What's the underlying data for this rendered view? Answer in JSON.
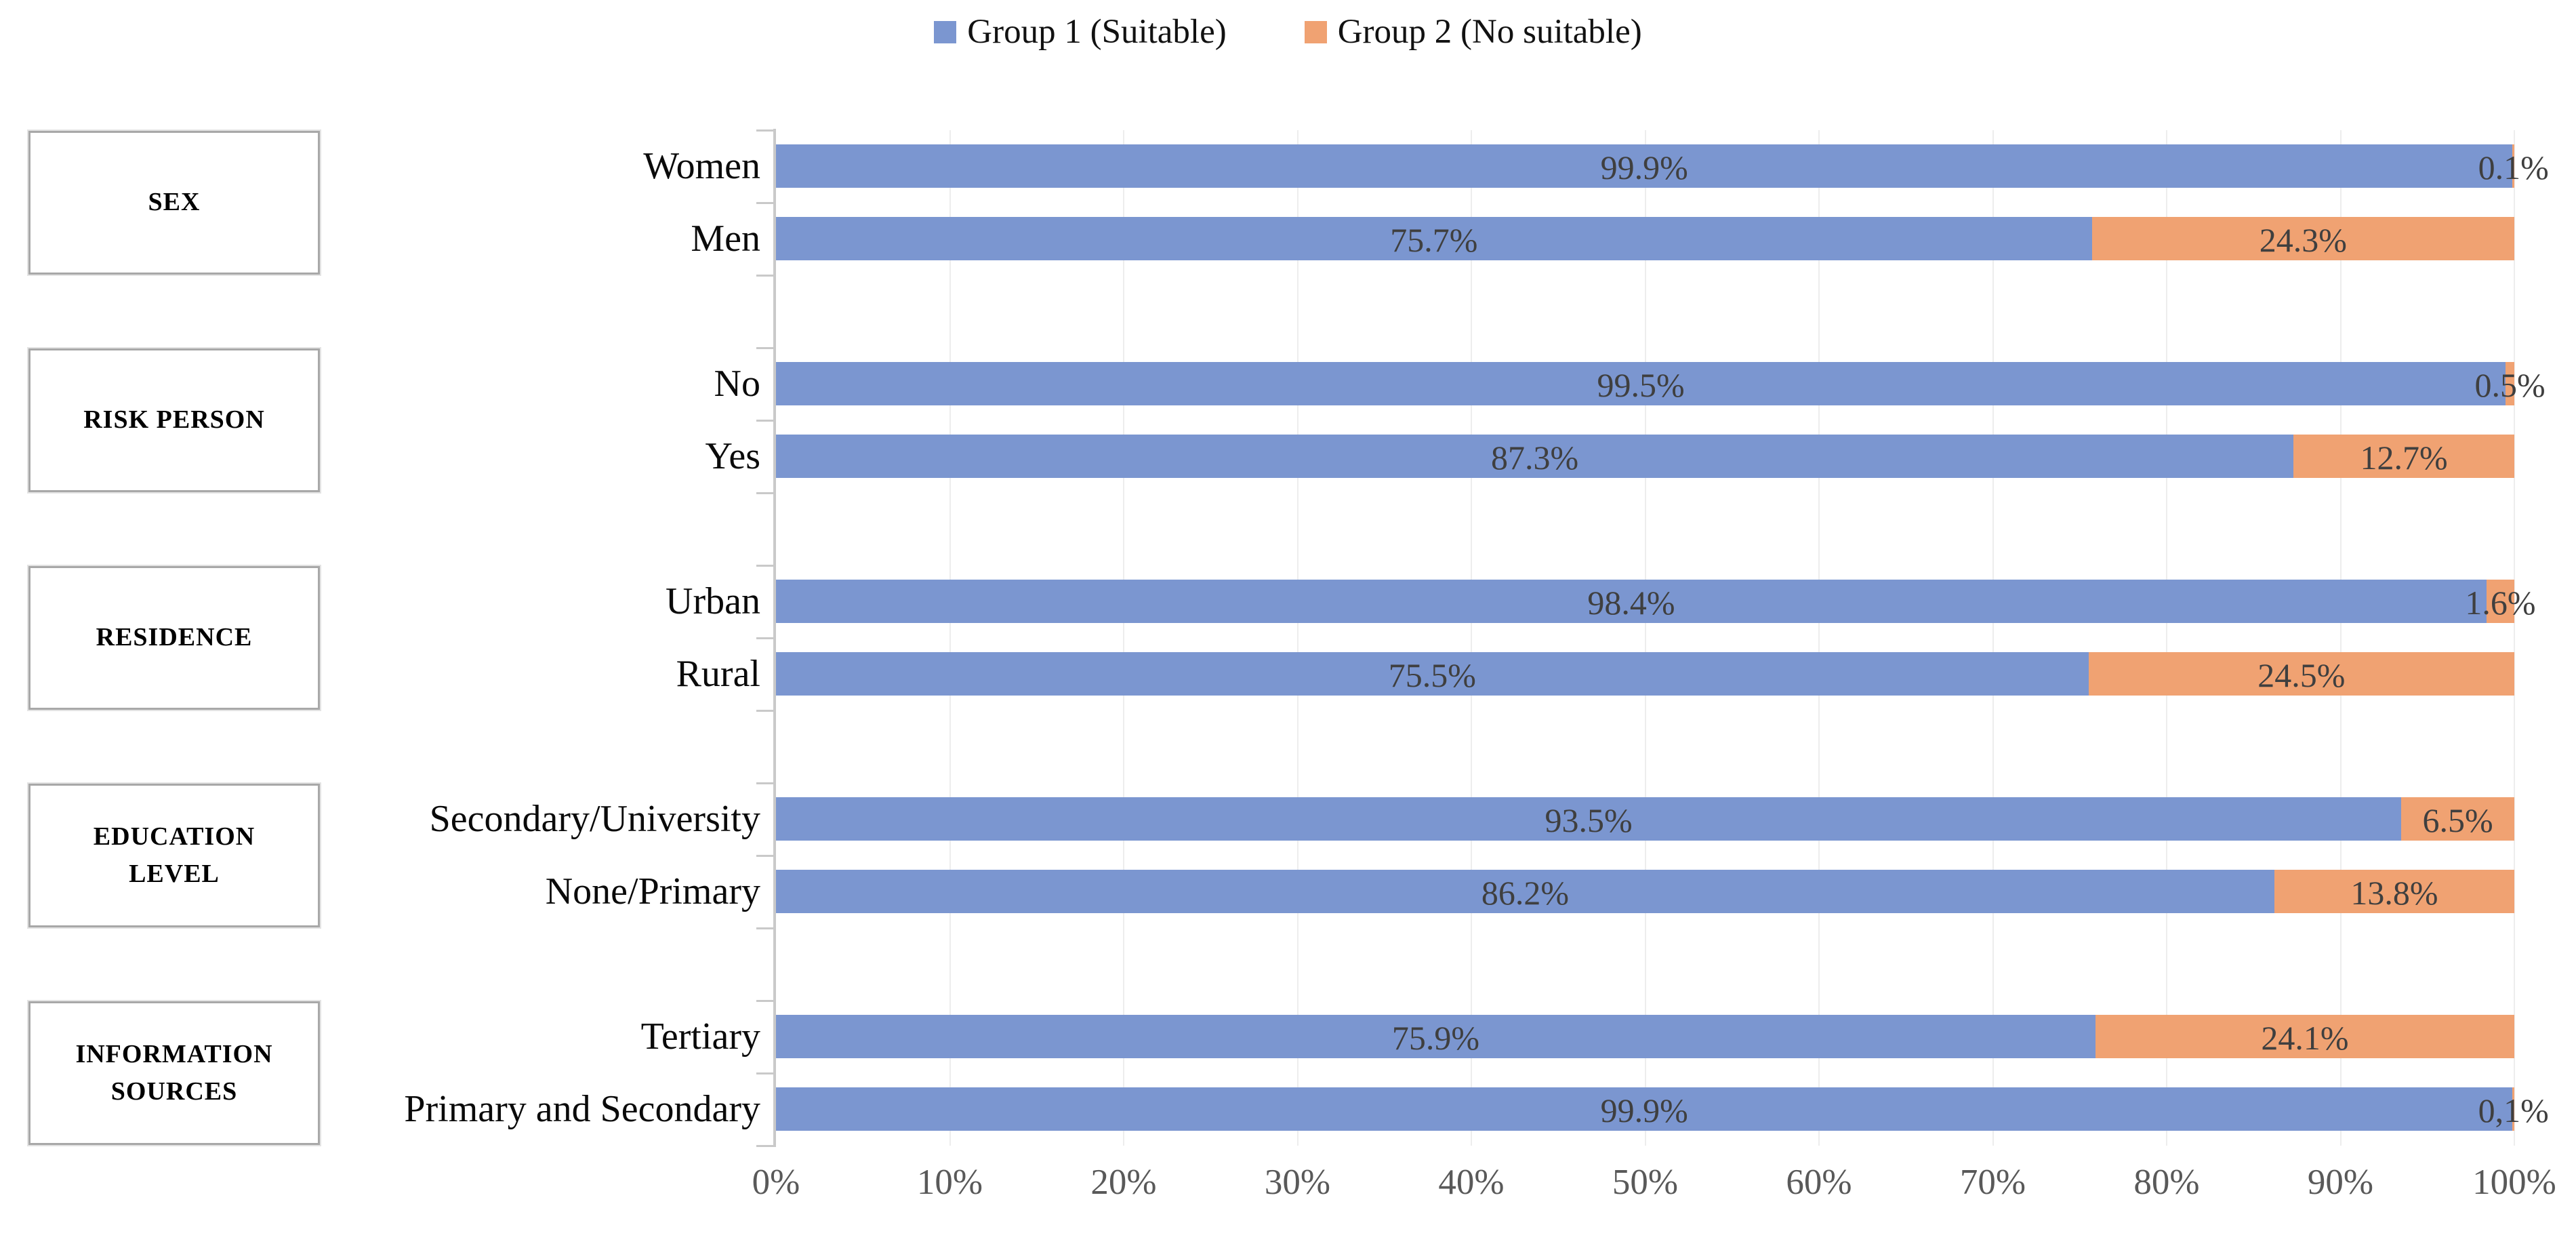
{
  "legend": [
    {
      "label": "Group 1 (Suitable)",
      "color": "#7B96D0"
    },
    {
      "label": "Group 2 (No suitable)",
      "color": "#F0A272"
    }
  ],
  "colors": {
    "group1_blue": "#7B96D0",
    "group2_orange": "#F0A272",
    "gridline": "#EDEDED",
    "axis": "#C9C9C9",
    "data_label": "#3F3F3F",
    "axis_label": "#595959"
  },
  "chart_data": {
    "type": "bar",
    "orientation": "horizontal",
    "stacked": true,
    "title": "",
    "xlabel": "",
    "ylabel": "",
    "xlim": [
      0,
      100
    ],
    "grid": true,
    "legend_position": "top-center",
    "series_names": [
      "Group 1 (Suitable)",
      "Group 2 (No suitable)"
    ],
    "x_ticks": [
      "0%",
      "10%",
      "20%",
      "30%",
      "40%",
      "50%",
      "60%",
      "70%",
      "80%",
      "90%",
      "100%"
    ],
    "groups": [
      {
        "label": "SEX",
        "rows": [
          {
            "category": "Women",
            "values": [
              99.9,
              0.1
            ],
            "labels": [
              "99.9%",
              "0.1%"
            ]
          },
          {
            "category": "Men",
            "values": [
              75.7,
              24.3
            ],
            "labels": [
              "75.7%",
              "24.3%"
            ]
          }
        ]
      },
      {
        "label": "RISK PERSON",
        "rows": [
          {
            "category": "No",
            "values": [
              99.5,
              0.5
            ],
            "labels": [
              "99.5%",
              "0.5%"
            ]
          },
          {
            "category": "Yes",
            "values": [
              87.3,
              12.7
            ],
            "labels": [
              "87.3%",
              "12.7%"
            ]
          }
        ]
      },
      {
        "label": "RESIDENCE",
        "rows": [
          {
            "category": "Urban",
            "values": [
              98.4,
              1.6
            ],
            "labels": [
              "98.4%",
              "1.6%"
            ]
          },
          {
            "category": "Rural",
            "values": [
              75.5,
              24.5
            ],
            "labels": [
              "75.5%",
              "24.5%"
            ]
          }
        ]
      },
      {
        "label": "EDUCATION LEVEL",
        "rows": [
          {
            "category": "Secondary/University",
            "values": [
              93.5,
              6.5
            ],
            "labels": [
              "93.5%",
              "6.5%"
            ]
          },
          {
            "category": "None/Primary",
            "values": [
              86.2,
              13.8
            ],
            "labels": [
              "86.2%",
              "13.8%"
            ]
          }
        ]
      },
      {
        "label": "INFORMATION SOURCES",
        "rows": [
          {
            "category": "Tertiary",
            "values": [
              75.9,
              24.1
            ],
            "labels": [
              "75.9%",
              "24.1%"
            ]
          },
          {
            "category": "Primary and Secondary",
            "values": [
              99.9,
              0.1
            ],
            "labels": [
              "99.9%",
              "0,1%"
            ]
          }
        ]
      }
    ]
  }
}
